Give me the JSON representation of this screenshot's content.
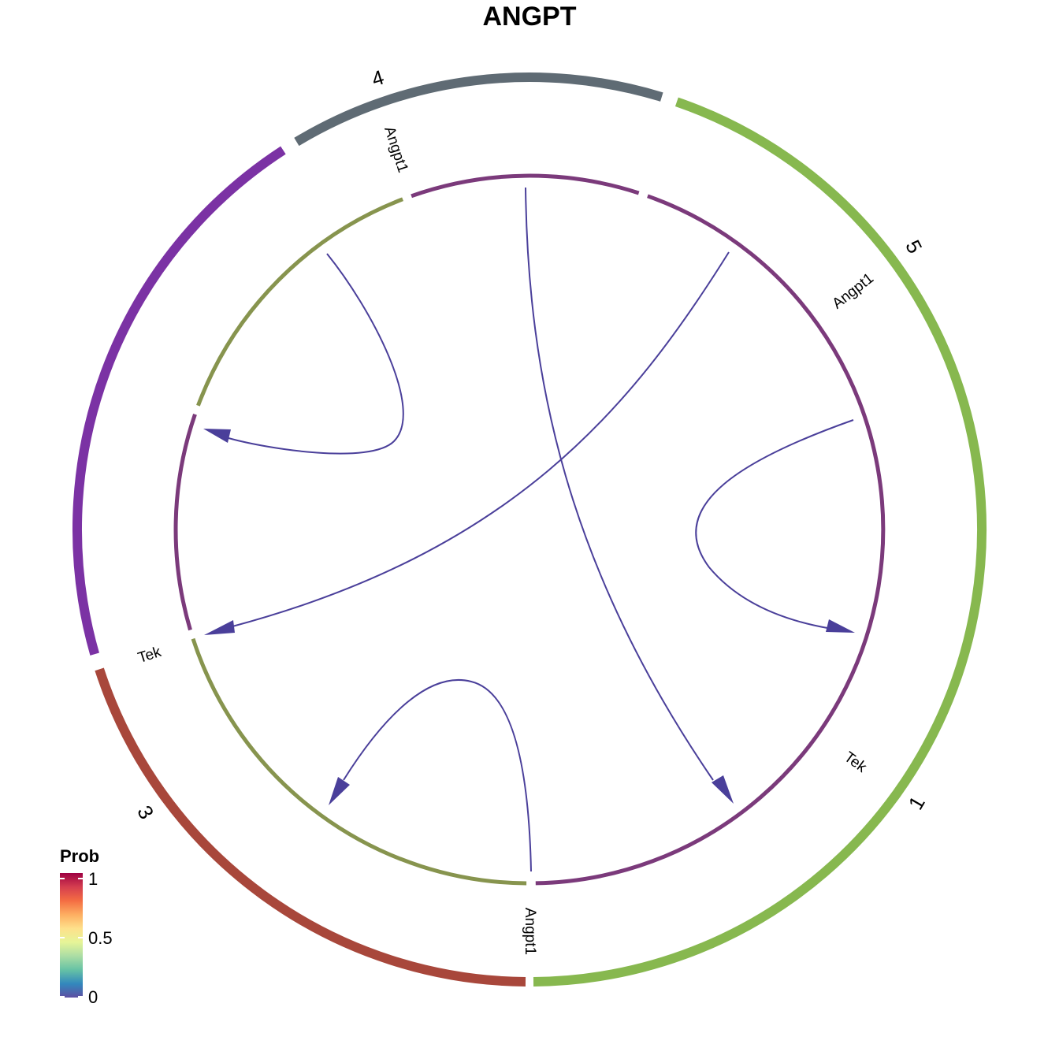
{
  "chart_data": {
    "type": "chord",
    "title": "ANGPT",
    "groups": [
      {
        "name": "1",
        "color": "#A8473B"
      },
      {
        "name": "3",
        "color": "#7B32A4"
      },
      {
        "name": "4",
        "color": "#5F6B74"
      },
      {
        "name": "5",
        "color": "#87B84F"
      }
    ],
    "genes": [
      {
        "name": "Tek",
        "group": "1",
        "role": "receptor",
        "color": "#87944E"
      },
      {
        "name": "Angpt1",
        "group": "3",
        "role": "ligand",
        "color": "#7B3A7B"
      },
      {
        "name": "Tek",
        "group": "3",
        "role": "receptor",
        "color": "#87944E"
      },
      {
        "name": "Angpt1",
        "group": "4",
        "role": "ligand",
        "color": "#7B3A7B"
      },
      {
        "name": "Angpt1",
        "group": "5",
        "role": "ligand",
        "color": "#7B3A7B"
      }
    ],
    "links": [
      {
        "source": "4",
        "target": "3",
        "prob_color": "#4A3F9A"
      },
      {
        "source": "4",
        "target": "1",
        "prob_color": "#4A3F9A"
      },
      {
        "source": "5",
        "target": "3",
        "prob_color": "#4A3F9A"
      },
      {
        "source": "5",
        "target": "1",
        "prob_color": "#4A3F9A"
      },
      {
        "source": "3",
        "target": "3",
        "prob_color": "#4A3F9A"
      }
    ],
    "legend": {
      "title": "Prob",
      "ticks": [
        "1",
        "0.5",
        "0"
      ],
      "colors": [
        "#5E4FA2",
        "#3288BD",
        "#66C2A5",
        "#ABDDA4",
        "#E6F598",
        "#FEE08B",
        "#FDAE61",
        "#F46D43",
        "#D53E4F",
        "#9E0142"
      ]
    }
  }
}
